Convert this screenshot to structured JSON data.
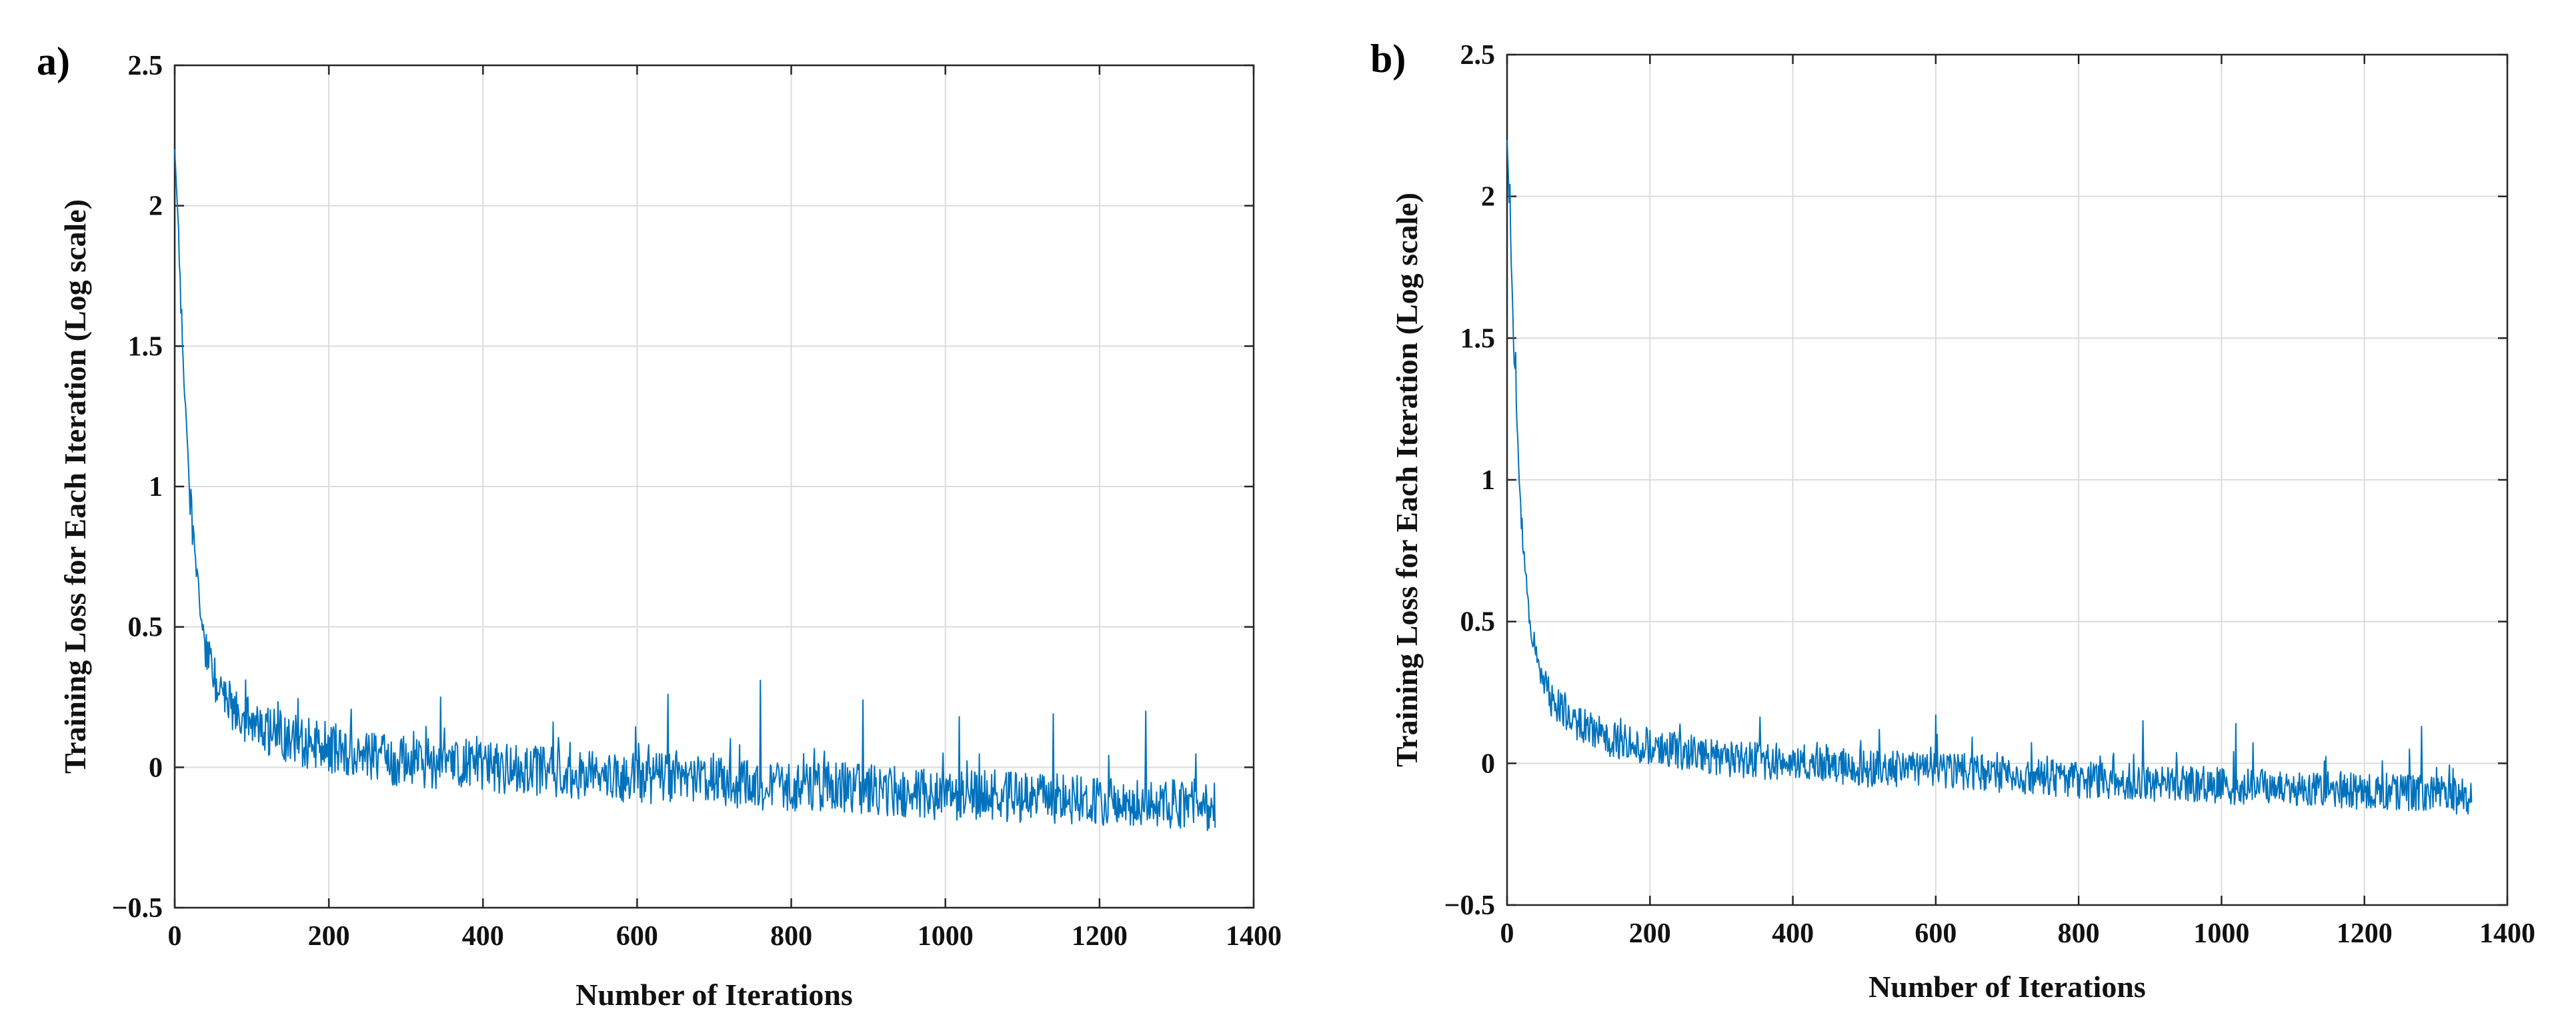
{
  "chart_data": [
    {
      "type": "line",
      "panel_label": "a)",
      "title": "",
      "xlabel": "Number of Iterations",
      "ylabel": "Training Loss for Each Iteration (Log scale)",
      "xlim": [
        0,
        1400
      ],
      "ylim": [
        -0.5,
        2.5
      ],
      "xticks": [
        0,
        200,
        400,
        600,
        800,
        1000,
        1200,
        1400
      ],
      "xtick_labels": [
        "0",
        "200",
        "400",
        "600",
        "800",
        "1000",
        "1200",
        "1400"
      ],
      "yticks": [
        -0.5,
        0,
        0.5,
        1,
        1.5,
        2,
        2.5
      ],
      "ytick_labels": [
        "−0.5",
        "0",
        "0.5",
        "1",
        "1.5",
        "2",
        "2.5"
      ],
      "grid": true,
      "series": [
        {
          "name": "training loss",
          "color": "#0072BD",
          "x": [
            0,
            5,
            10,
            20,
            30,
            40,
            50,
            60,
            80,
            100,
            120,
            150,
            200,
            250,
            300,
            350,
            400,
            450,
            500,
            550,
            600,
            650,
            700,
            750,
            800,
            850,
            900,
            950,
            1000,
            1050,
            1100,
            1150,
            1200,
            1250,
            1300,
            1350
          ],
          "y": [
            2.2,
            1.9,
            1.5,
            0.95,
            0.62,
            0.42,
            0.32,
            0.26,
            0.2,
            0.16,
            0.13,
            0.1,
            0.07,
            0.04,
            0.02,
            0.01,
            0.0,
            -0.01,
            -0.02,
            -0.03,
            -0.04,
            -0.04,
            -0.05,
            -0.06,
            -0.07,
            -0.07,
            -0.08,
            -0.09,
            -0.1,
            -0.1,
            -0.11,
            -0.11,
            -0.12,
            -0.12,
            -0.13,
            -0.14
          ],
          "noise_amplitude": 0.09,
          "spikes": [
            {
              "x": 345,
              "y": 0.25
            },
            {
              "x": 640,
              "y": 0.26
            },
            {
              "x": 760,
              "y": 0.31
            },
            {
              "x": 893,
              "y": 0.24
            },
            {
              "x": 1018,
              "y": 0.18
            },
            {
              "x": 1140,
              "y": 0.19
            },
            {
              "x": 1260,
              "y": 0.2
            }
          ]
        }
      ]
    },
    {
      "type": "line",
      "panel_label": "b)",
      "title": "",
      "xlabel": "Number of Iterations",
      "ylabel": "Training Loss for Each Iteration (Log scale)",
      "xlim": [
        0,
        1400
      ],
      "ylim": [
        -0.5,
        2.5
      ],
      "xticks": [
        0,
        200,
        400,
        600,
        800,
        1000,
        1200,
        1400
      ],
      "xtick_labels": [
        "0",
        "200",
        "400",
        "600",
        "800",
        "1000",
        "1200",
        "1400"
      ],
      "yticks": [
        -0.5,
        0,
        0.5,
        1,
        1.5,
        2,
        2.5
      ],
      "ytick_labels": [
        "−0.5",
        "0",
        "0.5",
        "1",
        "1.5",
        "2",
        "2.5"
      ],
      "grid": true,
      "series": [
        {
          "name": "training loss",
          "color": "#0072BD",
          "x": [
            0,
            5,
            10,
            20,
            30,
            40,
            50,
            60,
            80,
            100,
            120,
            150,
            200,
            250,
            300,
            350,
            400,
            450,
            500,
            550,
            600,
            650,
            700,
            750,
            800,
            850,
            900,
            950,
            1000,
            1050,
            1100,
            1150,
            1200,
            1250,
            1300,
            1350
          ],
          "y": [
            2.2,
            1.85,
            1.45,
            0.85,
            0.55,
            0.38,
            0.29,
            0.23,
            0.17,
            0.14,
            0.11,
            0.08,
            0.06,
            0.04,
            0.02,
            0.01,
            0.0,
            -0.01,
            -0.02,
            -0.02,
            -0.03,
            -0.03,
            -0.04,
            -0.05,
            -0.06,
            -0.06,
            -0.07,
            -0.07,
            -0.08,
            -0.08,
            -0.09,
            -0.09,
            -0.1,
            -0.1,
            -0.11,
            -0.12
          ],
          "noise_amplitude": 0.065,
          "spikes": [
            {
              "x": 600,
              "y": 0.17
            },
            {
              "x": 890,
              "y": 0.15
            },
            {
              "x": 1020,
              "y": 0.14
            },
            {
              "x": 1280,
              "y": 0.13
            }
          ]
        }
      ]
    }
  ]
}
